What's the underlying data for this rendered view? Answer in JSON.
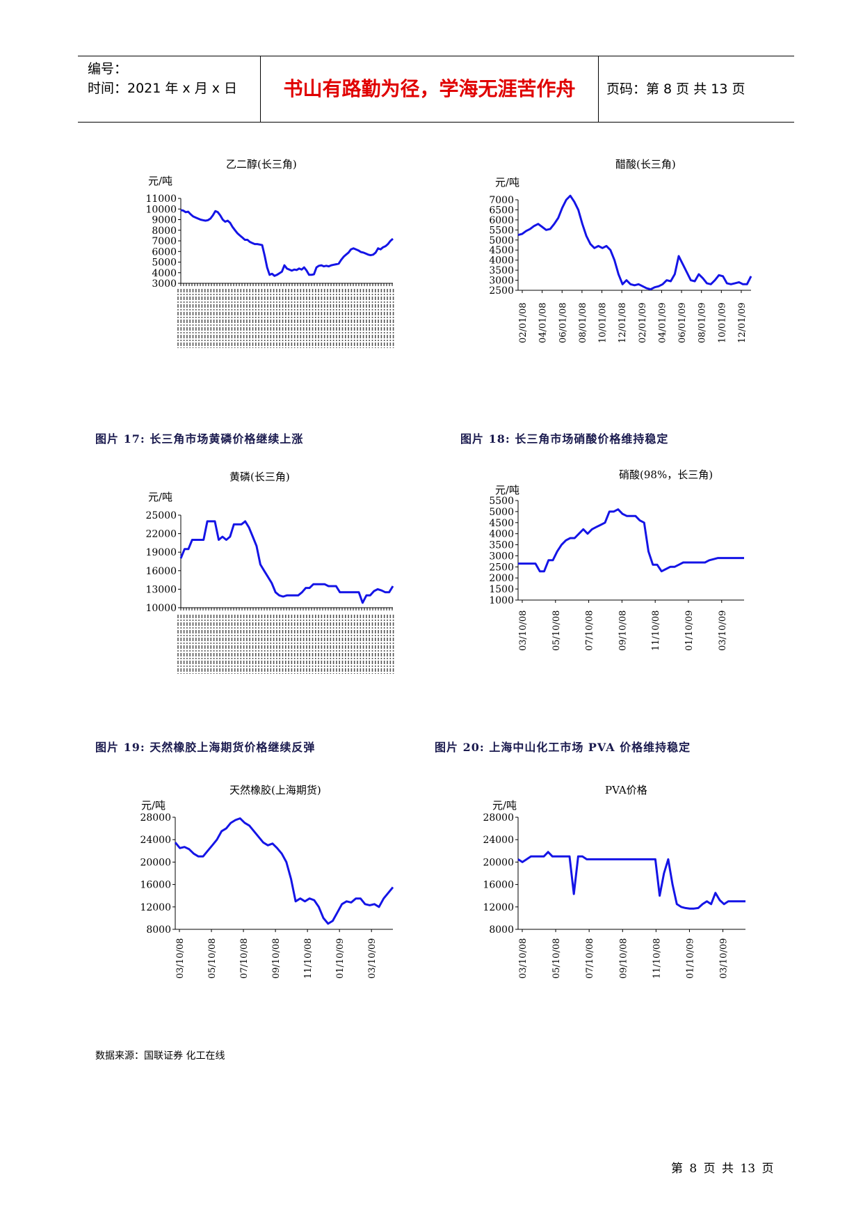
{
  "header": {
    "serial_label": "编号：",
    "time_label": "时间：2021 年 x 月 x 日",
    "motto": "书山有路勤为径，学海无涯苦作舟",
    "page_info": "页码：第 8 页  共 13 页"
  },
  "captions": {
    "fig17": "图片 17:    长三角市场黄磷价格继续上涨",
    "fig18": "图片 18:    长三角市场硝酸价格维持稳定",
    "fig19": "图片 19:    天然橡胶上海期货价格继续反弹",
    "fig20": "图片 20:    上海中山化工市场 PVA 价格维持稳定"
  },
  "source_note": "数据来源：国联证券   化工在线",
  "footer": "第 8 页  共 13 页",
  "line_color": "#1414e6",
  "chart_data": [
    {
      "type": "line",
      "title": "乙二醇(长三角)",
      "unit": "元/吨",
      "ylim": [
        3000,
        11000
      ],
      "yticks": [
        3000,
        4000,
        5000,
        6000,
        7000,
        8000,
        9000,
        10000,
        11000
      ],
      "xticks": [],
      "dense_xticks": true,
      "series": [
        {
          "values": [
            9900,
            9850,
            9700,
            9750,
            9500,
            9300,
            9200,
            9100,
            9000,
            8950,
            8900,
            8950,
            9100,
            9400,
            9800,
            9700,
            9400,
            9000,
            8800,
            8900,
            8700,
            8300,
            8000,
            7700,
            7500,
            7300,
            7100,
            7100,
            6900,
            6800,
            6700,
            6700,
            6650,
            6600,
            5600,
            4500,
            3800,
            3900,
            3700,
            3800,
            3950,
            4100,
            4700,
            4400,
            4300,
            4200,
            4300,
            4250,
            4400,
            4300,
            4500,
            4200,
            3800,
            3800,
            3850,
            4500,
            4650,
            4700,
            4600,
            4650,
            4600,
            4700,
            4750,
            4800,
            4850,
            5200,
            5500,
            5700,
            5900,
            6200,
            6300,
            6200,
            6100,
            5950,
            5900,
            5800,
            5700,
            5650,
            5700,
            5900,
            6300,
            6200,
            6400,
            6500,
            6700,
            7000,
            7200
          ]
        }
      ]
    },
    {
      "type": "line",
      "title": "醋酸(长三角)",
      "unit": "元/吨",
      "ylim": [
        2500,
        7000
      ],
      "yticks": [
        2500,
        3000,
        3500,
        4000,
        4500,
        5000,
        5500,
        6000,
        6500,
        7000
      ],
      "xticks": [
        "02/01/08",
        "04/01/08",
        "06/01/08",
        "08/01/08",
        "10/01/08",
        "12/01/08",
        "02/01/09",
        "04/01/09",
        "06/01/09",
        "08/01/09",
        "10/01/09",
        "12/01/09"
      ],
      "series": [
        {
          "values": [
            5250,
            5300,
            5450,
            5550,
            5700,
            5800,
            5650,
            5500,
            5550,
            5800,
            6100,
            6600,
            7000,
            7200,
            6900,
            6500,
            5800,
            5200,
            4800,
            4600,
            4700,
            4600,
            4700,
            4500,
            4000,
            3300,
            2800,
            3000,
            2800,
            2750,
            2800,
            2700,
            2600,
            2550,
            2650,
            2700,
            2800,
            3000,
            2950,
            3300,
            4200,
            3800,
            3400,
            3000,
            2950,
            3300,
            3100,
            2850,
            2800,
            3000,
            3250,
            3200,
            2850,
            2800,
            2850,
            2900,
            2800,
            2800,
            3200
          ]
        }
      ]
    },
    {
      "type": "line",
      "title": "黄磷(长三角)",
      "unit": "元/吨",
      "ylim": [
        10000,
        25000
      ],
      "yticks": [
        10000,
        13000,
        16000,
        19000,
        22000,
        25000
      ],
      "xticks": [],
      "dense_xticks": true,
      "series": [
        {
          "values": [
            18000,
            19500,
            19500,
            21000,
            21000,
            21000,
            21000,
            24000,
            24000,
            24000,
            21000,
            21500,
            21000,
            21500,
            23500,
            23500,
            23500,
            24000,
            23000,
            21500,
            20000,
            17000,
            16000,
            15000,
            14000,
            12500,
            12000,
            11800,
            12000,
            12000,
            12000,
            12000,
            12500,
            13200,
            13200,
            13800,
            13800,
            13800,
            13800,
            13500,
            13500,
            13500,
            12500,
            12500,
            12500,
            12500,
            12500,
            12500,
            10800,
            12000,
            12000,
            12700,
            13000,
            12800,
            12500,
            12500,
            13500
          ]
        }
      ]
    },
    {
      "type": "line",
      "title": "硝酸(98%，长三角)",
      "unit": "元/吨",
      "ylim": [
        1000,
        5500
      ],
      "yticks": [
        1000,
        1500,
        2000,
        2500,
        3000,
        3500,
        4000,
        4500,
        5000,
        5500
      ],
      "xticks": [
        "03/10/08",
        "05/10/08",
        "07/10/08",
        "09/10/08",
        "11/10/08",
        "01/10/09",
        "03/10/09"
      ],
      "series": [
        {
          "values": [
            2650,
            2650,
            2650,
            2650,
            2650,
            2300,
            2300,
            2800,
            2800,
            3200,
            3500,
            3700,
            3800,
            3800,
            4000,
            4200,
            4000,
            4200,
            4300,
            4400,
            4500,
            5000,
            5000,
            5100,
            4900,
            4800,
            4800,
            4800,
            4600,
            4500,
            3200,
            2600,
            2600,
            2300,
            2400,
            2500,
            2500,
            2600,
            2700,
            2700,
            2700,
            2700,
            2700,
            2700,
            2800,
            2850,
            2900,
            2900,
            2900,
            2900,
            2900,
            2900,
            2900
          ]
        }
      ]
    },
    {
      "type": "line",
      "title": "天然橡胶(上海期货)",
      "unit": "元/吨",
      "ylim": [
        8000,
        28000
      ],
      "yticks": [
        8000,
        12000,
        16000,
        20000,
        24000,
        28000
      ],
      "xticks": [
        "03/10/08",
        "05/10/08",
        "07/10/08",
        "09/10/08",
        "11/10/08",
        "01/10/09",
        "03/10/09"
      ],
      "series": [
        {
          "values": [
            23500,
            22500,
            22700,
            22300,
            21500,
            21000,
            21000,
            22000,
            23000,
            24000,
            25500,
            26000,
            27000,
            27500,
            27800,
            27000,
            26500,
            25500,
            24500,
            23500,
            23000,
            23300,
            22500,
            21500,
            20000,
            17000,
            13000,
            13500,
            13000,
            13500,
            13200,
            12000,
            10000,
            9000,
            9500,
            11000,
            12500,
            13000,
            12800,
            13500,
            13500,
            12500,
            12300,
            12500,
            12000,
            13500,
            14500,
            15500
          ]
        }
      ]
    },
    {
      "type": "line",
      "title": "PVA价格",
      "unit": "元/吨",
      "ylim": [
        8000,
        28000
      ],
      "yticks": [
        8000,
        12000,
        16000,
        20000,
        24000,
        28000
      ],
      "xticks": [
        "03/10/08",
        "05/10/08",
        "07/10/08",
        "09/10/08",
        "11/10/08",
        "01/10/09",
        "03/10/09"
      ],
      "series": [
        {
          "values": [
            20500,
            20000,
            20500,
            21000,
            21000,
            21000,
            21000,
            21800,
            21000,
            21000,
            21000,
            21000,
            21000,
            14300,
            21000,
            21000,
            20500,
            20500,
            20500,
            20500,
            20500,
            20500,
            20500,
            20500,
            20500,
            20500,
            20500,
            20500,
            20500,
            20500,
            20500,
            20500,
            20500,
            14000,
            18000,
            20500,
            16000,
            12500,
            12000,
            11800,
            11700,
            11700,
            11800,
            12500,
            13000,
            12500,
            14500,
            13200,
            12500,
            13000,
            13000,
            13000,
            13000,
            13000
          ]
        }
      ]
    }
  ]
}
